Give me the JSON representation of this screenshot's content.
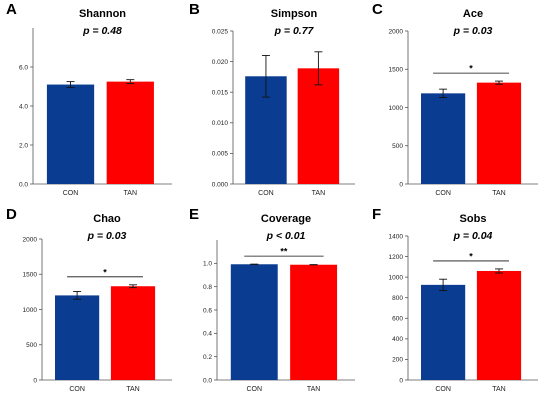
{
  "colors": {
    "con": "#0a3d91",
    "tan": "#ff0000"
  },
  "chart_data": [
    {
      "type": "bar",
      "letter": "A",
      "title": "Shannon",
      "pvalue": "p = 0.48",
      "categories": [
        "CON",
        "TAN"
      ],
      "values": [
        5.1,
        5.25
      ],
      "errors": [
        0.15,
        0.1
      ],
      "ylim": [
        0,
        8
      ],
      "yticks": [
        "0.0",
        "2.0",
        "4.0",
        "6.0"
      ],
      "yticks_num": [
        0,
        2,
        4,
        6
      ],
      "significance": ""
    },
    {
      "type": "bar",
      "letter": "B",
      "title": "Simpson",
      "pvalue": "p = 0.77",
      "categories": [
        "CON",
        "TAN"
      ],
      "values": [
        0.0176,
        0.0189
      ],
      "errors": [
        0.0034,
        0.0027
      ],
      "ylim": [
        0,
        0.025
      ],
      "yticks": [
        "0.000",
        "0.005",
        "0.010",
        "0.015",
        "0.020",
        "0.025"
      ],
      "yticks_num": [
        0,
        0.005,
        0.01,
        0.015,
        0.02,
        0.025
      ],
      "significance": ""
    },
    {
      "type": "bar",
      "letter": "C",
      "title": "Ace",
      "pvalue": "p = 0.03",
      "categories": [
        "CON",
        "TAN"
      ],
      "values": [
        1185,
        1325
      ],
      "errors": [
        55,
        20
      ],
      "ylim": [
        0,
        2000
      ],
      "yticks": [
        "0",
        "500",
        "1000",
        "1500",
        "2000"
      ],
      "yticks_num": [
        0,
        500,
        1000,
        1500,
        2000
      ],
      "significance": "*"
    },
    {
      "type": "bar",
      "letter": "D",
      "title": "Chao",
      "pvalue": "p = 0.03",
      "categories": [
        "CON",
        "TAN"
      ],
      "values": [
        1200,
        1330
      ],
      "errors": [
        55,
        20
      ],
      "ylim": [
        0,
        2000
      ],
      "yticks": [
        "0",
        "500",
        "1000",
        "1500",
        "2000"
      ],
      "yticks_num": [
        0,
        500,
        1000,
        1500,
        2000
      ],
      "significance": "*"
    },
    {
      "type": "bar",
      "letter": "E",
      "title": "Coverage",
      "pvalue": "p < 0.01",
      "categories": [
        "CON",
        "TAN"
      ],
      "values": [
        0.992,
        0.988
      ],
      "errors": [
        0.001,
        0.001
      ],
      "ylim": [
        0,
        1.2
      ],
      "yticks": [
        "0.0",
        "0.2",
        "0.4",
        "0.6",
        "0.8",
        "1.0"
      ],
      "yticks_num": [
        0,
        0.2,
        0.4,
        0.6,
        0.8,
        1.0
      ],
      "significance": "**"
    },
    {
      "type": "bar",
      "letter": "F",
      "title": "Sobs",
      "pvalue": "p = 0.04",
      "categories": [
        "CON",
        "TAN"
      ],
      "values": [
        925,
        1060
      ],
      "errors": [
        55,
        20
      ],
      "ylim": [
        0,
        1400
      ],
      "yticks": [
        "0",
        "200",
        "400",
        "600",
        "800",
        "1000",
        "1200",
        "1400"
      ],
      "yticks_num": [
        0,
        200,
        400,
        600,
        800,
        1000,
        1200,
        1400
      ],
      "significance": "*"
    }
  ]
}
